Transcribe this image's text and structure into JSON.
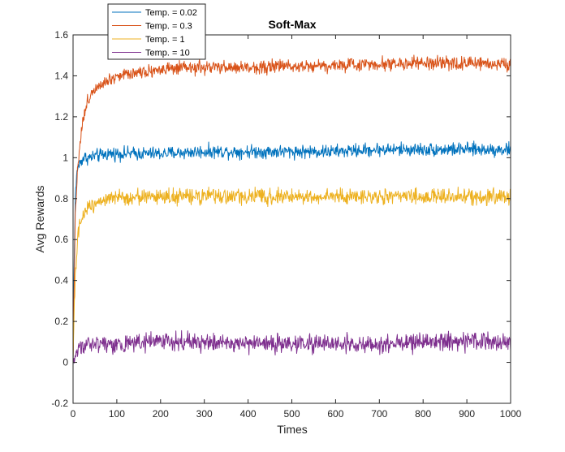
{
  "chart_data": {
    "type": "line",
    "title": "Soft-Max",
    "xlabel": "Times",
    "ylabel": "Avg Rewards",
    "xlim": [
      0,
      1000
    ],
    "ylim": [
      -0.2,
      1.6
    ],
    "xticks": [
      0,
      100,
      200,
      300,
      400,
      500,
      600,
      700,
      800,
      900,
      1000
    ],
    "yticks": [
      -0.2,
      0,
      0.2,
      0.4,
      0.6,
      0.8,
      1,
      1.2,
      1.4,
      1.6
    ],
    "xtick_labels": [
      "0",
      "100",
      "200",
      "300",
      "400",
      "500",
      "600",
      "700",
      "800",
      "900",
      "1000"
    ],
    "ytick_labels": [
      "-0.2",
      "0",
      "0.2",
      "0.4",
      "0.6",
      "0.8",
      "1",
      "1.2",
      "1.4",
      "1.6"
    ],
    "grid": false,
    "legend_position": "top-left, outside above axes",
    "series": [
      {
        "name": "Temp. = 0.02",
        "color": "#0072BD",
        "x": [
          0,
          2,
          5,
          8,
          10,
          15,
          20,
          25,
          30,
          40,
          50,
          60,
          80,
          100,
          150,
          200,
          300,
          400,
          500,
          600,
          700,
          800,
          900,
          1000
        ],
        "values": [
          -0.02,
          0.4,
          0.8,
          0.9,
          0.95,
          0.97,
          0.99,
          1.0,
          1.0,
          1.0,
          1.01,
          1.01,
          1.02,
          1.02,
          1.02,
          1.02,
          1.03,
          1.03,
          1.03,
          1.03,
          1.04,
          1.04,
          1.04,
          1.04
        ],
        "noise": 0.03
      },
      {
        "name": "Temp. = 0.3",
        "color": "#D95319",
        "x": [
          0,
          2,
          5,
          8,
          10,
          15,
          20,
          25,
          30,
          40,
          50,
          60,
          80,
          100,
          150,
          200,
          300,
          400,
          500,
          600,
          700,
          800,
          900,
          1000
        ],
        "values": [
          0.0,
          0.3,
          0.7,
          0.85,
          0.95,
          1.05,
          1.15,
          1.2,
          1.25,
          1.31,
          1.34,
          1.36,
          1.38,
          1.4,
          1.42,
          1.43,
          1.44,
          1.44,
          1.45,
          1.45,
          1.46,
          1.46,
          1.46,
          1.46
        ],
        "noise": 0.03
      },
      {
        "name": "Temp. = 1",
        "color": "#EDB120",
        "x": [
          0,
          2,
          5,
          8,
          10,
          15,
          20,
          25,
          30,
          40,
          50,
          60,
          80,
          100,
          150,
          200,
          300,
          400,
          500,
          600,
          700,
          800,
          900,
          1000
        ],
        "values": [
          0.02,
          0.2,
          0.4,
          0.52,
          0.6,
          0.66,
          0.7,
          0.73,
          0.75,
          0.77,
          0.78,
          0.79,
          0.8,
          0.8,
          0.81,
          0.81,
          0.81,
          0.81,
          0.81,
          0.81,
          0.81,
          0.81,
          0.81,
          0.81
        ],
        "noise": 0.035
      },
      {
        "name": "Temp. = 10",
        "color": "#7E2F8E",
        "x": [
          0,
          2,
          5,
          8,
          10,
          15,
          20,
          25,
          30,
          40,
          50,
          60,
          80,
          100,
          150,
          200,
          300,
          400,
          500,
          600,
          700,
          800,
          900,
          1000
        ],
        "values": [
          -0.01,
          0.02,
          0.04,
          0.05,
          0.06,
          0.07,
          0.08,
          0.08,
          0.09,
          0.09,
          0.09,
          0.09,
          0.09,
          0.09,
          0.1,
          0.1,
          0.1,
          0.09,
          0.09,
          0.09,
          0.09,
          0.1,
          0.1,
          0.1
        ],
        "noise": 0.04
      }
    ]
  }
}
